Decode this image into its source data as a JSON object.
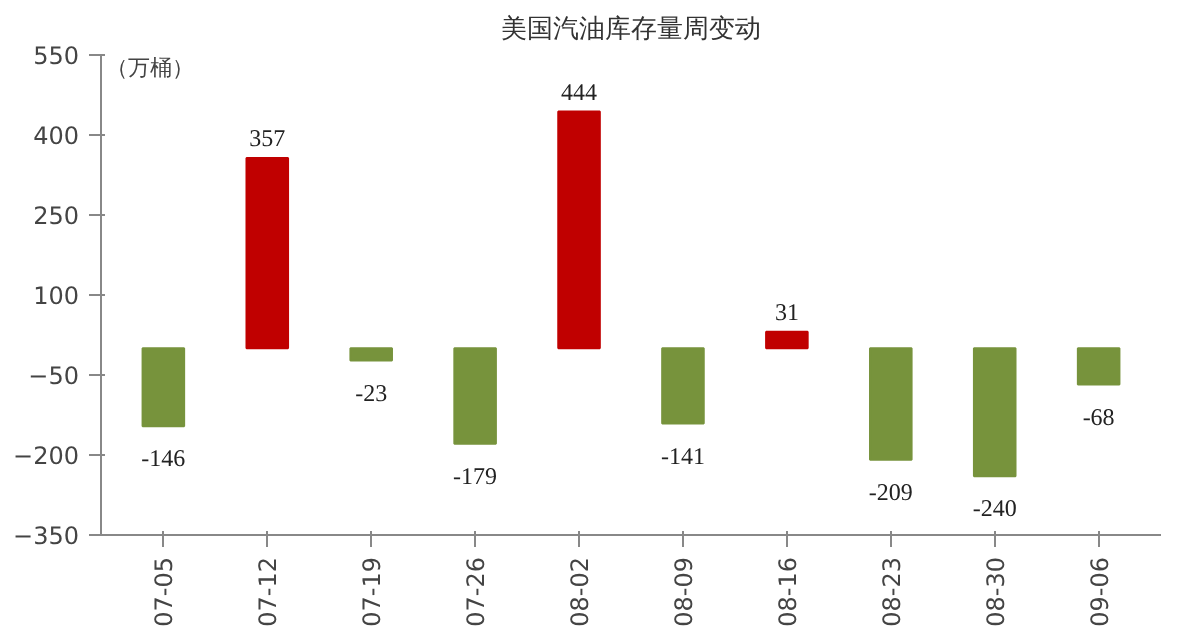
{
  "chart_data": {
    "type": "bar",
    "title": "美国汽油库存量周变动",
    "ylabel": "（万桶）",
    "categories": [
      "07-05",
      "07-12",
      "07-19",
      "07-26",
      "08-02",
      "08-09",
      "08-16",
      "08-23",
      "08-30",
      "09-06"
    ],
    "values": [
      -146,
      357,
      -23,
      -179,
      444,
      -141,
      31,
      -209,
      -240,
      -68
    ],
    "colors": [
      "#77933c",
      "#c00000",
      "#77933c",
      "#77933c",
      "#c00000",
      "#77933c",
      "#c00000",
      "#77933c",
      "#77933c",
      "#77933c"
    ],
    "ylim": [
      -350,
      550
    ],
    "yticks": [
      -350,
      -200,
      -50,
      100,
      250,
      400,
      550
    ],
    "data_labels": true,
    "grid": false
  }
}
